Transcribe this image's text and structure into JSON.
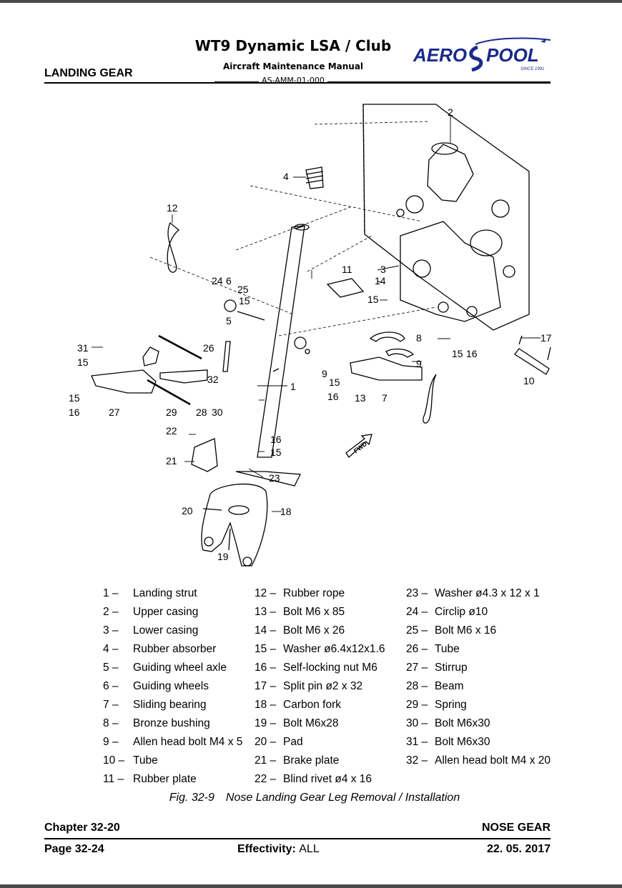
{
  "header": {
    "title": "WT9 Dynamic LSA / Club",
    "subtitle": "Aircraft Maintenance Manual",
    "doc_code": "AS-AMM-01-000",
    "section": "LANDING GEAR",
    "logo": {
      "brand": "AEROSPOOL",
      "tagline": "SINCE 1991",
      "color": "#1b2a8a"
    }
  },
  "diagram": {
    "fwd_arrow": "FWD",
    "callouts": [
      "1",
      "2",
      "3",
      "4",
      "5",
      "6",
      "7",
      "8",
      "9",
      "10",
      "11",
      "12",
      "13",
      "14",
      "15",
      "16",
      "17",
      "18",
      "19",
      "20",
      "21",
      "22",
      "23",
      "24",
      "25",
      "26",
      "27",
      "28",
      "29",
      "30",
      "31",
      "32"
    ]
  },
  "legend": {
    "col1": [
      {
        "num": "1 –",
        "label": "Landing strut"
      },
      {
        "num": "2 –",
        "label": "Upper casing"
      },
      {
        "num": "3 –",
        "label": "Lower casing"
      },
      {
        "num": "4 –",
        "label": "Rubber absorber"
      },
      {
        "num": "5 –",
        "label": "Guiding wheel axle"
      },
      {
        "num": "6 –",
        "label": "Guiding wheels"
      },
      {
        "num": "7 –",
        "label": "Sliding bearing"
      },
      {
        "num": "8 –",
        "label": "Bronze bushing"
      },
      {
        "num": "9 –",
        "label": "Allen head bolt M4 x 5"
      },
      {
        "num": "10 –",
        "label": "Tube"
      },
      {
        "num": "11 –",
        "label": "Rubber plate"
      }
    ],
    "col2": [
      {
        "num": "12 –",
        "label": "Rubber rope"
      },
      {
        "num": "13 –",
        "label": "Bolt M6 x 85"
      },
      {
        "num": "14 –",
        "label": "Bolt M6 x 26"
      },
      {
        "num": "15 –",
        "label": "Washer ø6.4x12x1.6"
      },
      {
        "num": "16 –",
        "label": "Self-locking nut M6"
      },
      {
        "num": "17 –",
        "label": "Split pin ø2 x 32"
      },
      {
        "num": "18 –",
        "label": "Carbon fork"
      },
      {
        "num": "19 –",
        "label": "Bolt M6x28"
      },
      {
        "num": "20 –",
        "label": "Pad"
      },
      {
        "num": "21 –",
        "label": "Brake plate"
      },
      {
        "num": "22 –",
        "label": "Blind rivet ø4 x 16"
      }
    ],
    "col3": [
      {
        "num": "23 –",
        "label": "Washer ø4.3 x 12 x 1"
      },
      {
        "num": "24 –",
        "label": "Circlip ø10"
      },
      {
        "num": "25 –",
        "label": "Bolt M6 x 16"
      },
      {
        "num": "26 –",
        "label": "Tube"
      },
      {
        "num": "27 –",
        "label": "Stirrup"
      },
      {
        "num": "28 –",
        "label": "Beam"
      },
      {
        "num": "29 –",
        "label": "Spring"
      },
      {
        "num": "30 –",
        "label": "Bolt M6x30"
      },
      {
        "num": "31 –",
        "label": "Bolt M6x30"
      },
      {
        "num": "32 –",
        "label": "Allen head bolt M4 x 20"
      }
    ]
  },
  "caption": {
    "fig_num": "Fig.  32-9",
    "text": "Nose Landing Gear Leg Removal / Installation"
  },
  "footer": {
    "chapter": "Chapter 32-20",
    "section": "NOSE GEAR",
    "page": "Page 32-24",
    "effectivity_label": "Effectivity:",
    "effectivity_value": "ALL",
    "date": "22. 05. 2017"
  }
}
